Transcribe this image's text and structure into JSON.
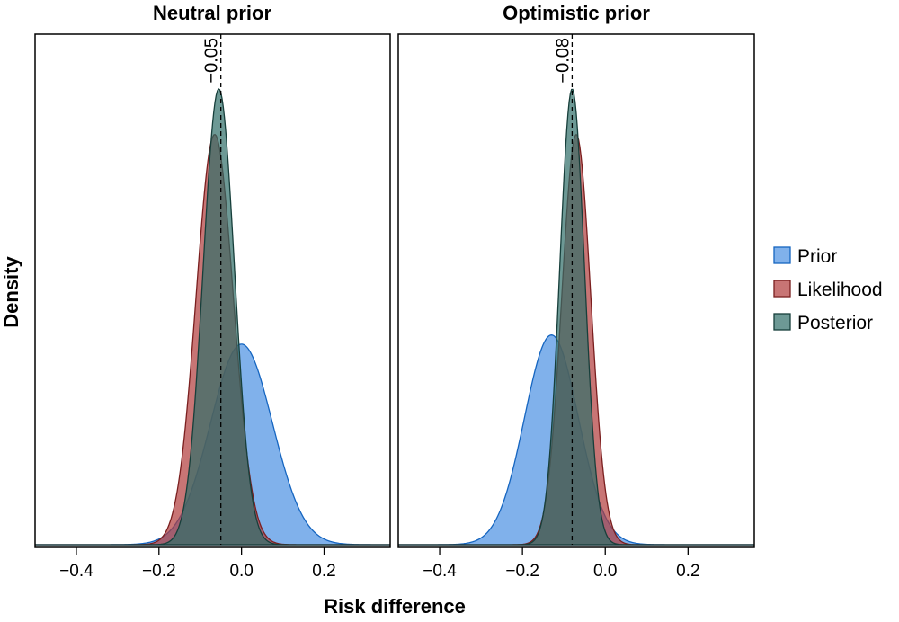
{
  "chart_data": {
    "type": "area",
    "kind": "density",
    "xlabel": "Risk difference",
    "ylabel": "Density",
    "xlim": [
      -0.5,
      0.36
    ],
    "x_ticks": [
      -0.4,
      -0.2,
      0.0,
      0.2
    ],
    "x_tick_labels": [
      "−0.4",
      "−0.2",
      "0.0",
      "0.2"
    ],
    "y_ticks_shown": false,
    "grid": false,
    "legend": {
      "position": "right",
      "entries": [
        {
          "name": "Prior",
          "color": "#4a90e2"
        },
        {
          "name": "Likelihood",
          "color": "#b03a3a"
        },
        {
          "name": "Posterior",
          "color": "#2f6e68"
        }
      ]
    },
    "panels": [
      {
        "title": "Neutral prior",
        "reference_line": {
          "x": -0.05,
          "label": "−0.05"
        },
        "series": [
          {
            "name": "Prior",
            "mean": 0.0,
            "sd": 0.075,
            "peak": 0.44
          },
          {
            "name": "Likelihood",
            "mean": -0.065,
            "sd": 0.045,
            "peak": 0.9
          },
          {
            "name": "Posterior",
            "mean": -0.055,
            "sd": 0.038,
            "peak": 1.0
          }
        ]
      },
      {
        "title": "Optimistic prior",
        "reference_line": {
          "x": -0.08,
          "label": "−0.08"
        },
        "series": [
          {
            "name": "Prior",
            "mean": -0.13,
            "sd": 0.065,
            "peak": 0.46
          },
          {
            "name": "Likelihood",
            "mean": -0.07,
            "sd": 0.035,
            "peak": 0.9
          },
          {
            "name": "Posterior",
            "mean": -0.08,
            "sd": 0.03,
            "peak": 1.0
          }
        ]
      }
    ],
    "y_max": 1.12
  }
}
